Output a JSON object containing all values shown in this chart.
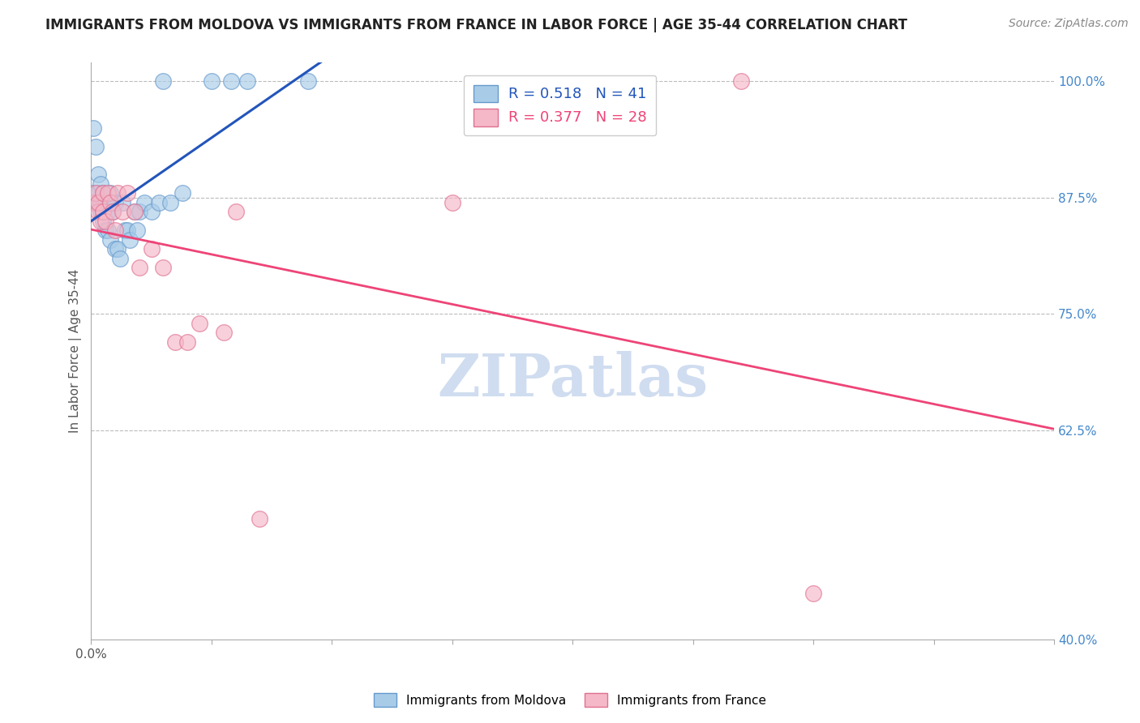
{
  "title": "IMMIGRANTS FROM MOLDOVA VS IMMIGRANTS FROM FRANCE IN LABOR FORCE | AGE 35-44 CORRELATION CHART",
  "source_text": "Source: ZipAtlas.com",
  "ylabel": "In Labor Force | Age 35-44",
  "xlim": [
    0.0,
    0.4
  ],
  "ylim": [
    0.4,
    1.02
  ],
  "xticks": [
    0.0,
    0.05,
    0.1,
    0.15,
    0.2,
    0.25,
    0.3,
    0.35,
    0.4
  ],
  "xticklabels_show": {
    "0.0": "0.0%",
    "0.40": "40.0%"
  },
  "yticks": [
    0.4,
    0.625,
    0.75,
    0.875,
    1.0
  ],
  "yticklabels": [
    "40.0%",
    "62.5%",
    "75.0%",
    "87.5%",
    "100.0%"
  ],
  "grid_color": "#bbbbbb",
  "background_color": "#ffffff",
  "moldova_color": "#a8cce8",
  "france_color": "#f5b8c8",
  "moldova_edge": "#6699cc",
  "france_edge": "#e07090",
  "moldova_line_color": "#2255bb",
  "france_line_color": "#ee4477",
  "R_moldova": 0.518,
  "N_moldova": 41,
  "R_france": 0.377,
  "N_france": 28,
  "legend_label_moldova": "Immigrants from Moldova",
  "legend_label_france": "Immigrants from France",
  "moldova_x": [
    0.001,
    0.001,
    0.002,
    0.002,
    0.003,
    0.003,
    0.003,
    0.004,
    0.004,
    0.004,
    0.005,
    0.005,
    0.005,
    0.006,
    0.006,
    0.007,
    0.007,
    0.008,
    0.008,
    0.009,
    0.01,
    0.01,
    0.011,
    0.012,
    0.013,
    0.014,
    0.015,
    0.016,
    0.018,
    0.019,
    0.02,
    0.022,
    0.025,
    0.028,
    0.03,
    0.033,
    0.038,
    0.05,
    0.058,
    0.065,
    0.09
  ],
  "moldova_y": [
    0.88,
    0.95,
    0.87,
    0.93,
    0.87,
    0.88,
    0.9,
    0.86,
    0.87,
    0.89,
    0.85,
    0.86,
    0.88,
    0.84,
    0.87,
    0.84,
    0.86,
    0.83,
    0.88,
    0.86,
    0.82,
    0.87,
    0.82,
    0.81,
    0.87,
    0.84,
    0.84,
    0.83,
    0.86,
    0.84,
    0.86,
    0.87,
    0.86,
    0.87,
    1.0,
    0.87,
    0.88,
    1.0,
    1.0,
    1.0,
    1.0
  ],
  "france_x": [
    0.001,
    0.002,
    0.003,
    0.003,
    0.004,
    0.005,
    0.005,
    0.006,
    0.007,
    0.008,
    0.009,
    0.01,
    0.011,
    0.013,
    0.015,
    0.018,
    0.02,
    0.025,
    0.03,
    0.035,
    0.04,
    0.045,
    0.055,
    0.06,
    0.07,
    0.15,
    0.27,
    0.3
  ],
  "france_y": [
    0.87,
    0.88,
    0.86,
    0.87,
    0.85,
    0.86,
    0.88,
    0.85,
    0.88,
    0.87,
    0.86,
    0.84,
    0.88,
    0.86,
    0.88,
    0.86,
    0.8,
    0.82,
    0.8,
    0.72,
    0.72,
    0.74,
    0.73,
    0.86,
    0.53,
    0.87,
    1.0,
    0.45
  ],
  "watermark_text": "ZIPatlas",
  "watermark_color": "#d0ddf0",
  "title_fontsize": 12,
  "source_fontsize": 10,
  "tick_fontsize": 11,
  "ytick_color": "#4488cc",
  "xtick_color": "#555555"
}
